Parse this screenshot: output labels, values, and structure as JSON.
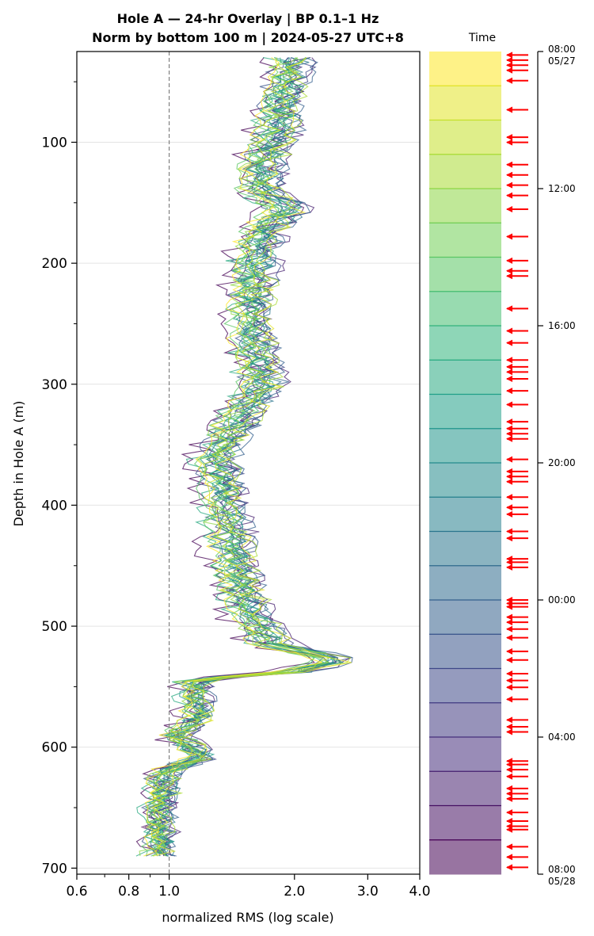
{
  "chart_data": {
    "type": "line",
    "title": [
      "Hole A — 24-hr Overlay  |  BP 0.1–1 Hz",
      "Norm by bottom 100 m  |  2024-05-27 UTC+8"
    ],
    "xlabel": "normalized RMS  (log scale)",
    "ylabel": "Depth in Hole A (m)",
    "xscale": "log",
    "xlim": [
      0.6,
      4.0
    ],
    "ylim": [
      705,
      25
    ],
    "xticks": [
      0.6,
      0.8,
      1.0,
      2.0,
      3.0,
      4.0
    ],
    "xtick_labels": [
      "0.6",
      "0.8",
      "1.0",
      "2.0",
      "3.0",
      "4.0"
    ],
    "yticks": [
      100,
      200,
      300,
      400,
      500,
      600,
      700
    ],
    "ytick_labels": [
      "100",
      "200",
      "300",
      "400",
      "500",
      "600",
      "700"
    ],
    "reference_line": {
      "x": 1.0,
      "style": "dashed"
    },
    "grid": "horizontal",
    "n_curves": 24,
    "depth_min": 30,
    "depth_max": 692,
    "depth_step": 4,
    "profile_points": [
      {
        "depth": 30,
        "rms": 1.9
      },
      {
        "depth": 60,
        "rms": 1.8
      },
      {
        "depth": 90,
        "rms": 1.75
      },
      {
        "depth": 120,
        "rms": 1.6
      },
      {
        "depth": 140,
        "rms": 1.58
      },
      {
        "depth": 155,
        "rms": 1.85
      },
      {
        "depth": 175,
        "rms": 1.6
      },
      {
        "depth": 200,
        "rms": 1.55
      },
      {
        "depth": 250,
        "rms": 1.5
      },
      {
        "depth": 300,
        "rms": 1.6
      },
      {
        "depth": 330,
        "rms": 1.4
      },
      {
        "depth": 360,
        "rms": 1.25
      },
      {
        "depth": 400,
        "rms": 1.3
      },
      {
        "depth": 450,
        "rms": 1.38
      },
      {
        "depth": 490,
        "rms": 1.5
      },
      {
        "depth": 515,
        "rms": 1.7
      },
      {
        "depth": 528,
        "rms": 2.45
      },
      {
        "depth": 538,
        "rms": 1.9
      },
      {
        "depth": 544,
        "rms": 1.12
      },
      {
        "depth": 575,
        "rms": 1.15
      },
      {
        "depth": 590,
        "rms": 1.02
      },
      {
        "depth": 608,
        "rms": 1.18
      },
      {
        "depth": 620,
        "rms": 0.95
      },
      {
        "depth": 650,
        "rms": 0.93
      },
      {
        "depth": 692,
        "rms": 0.92
      }
    ],
    "colorbar": {
      "label": "Time",
      "colormap": "viridis",
      "tick_labels": [
        "08:00\n05/27",
        "12:00",
        "16:00",
        "20:00",
        "00:00",
        "04:00",
        "08:00\n05/28"
      ],
      "tick_hours": [
        0,
        4,
        8,
        12,
        16,
        20,
        24
      ],
      "n_bands": 24,
      "marker_color": "#ff0000",
      "marker_hours": [
        0.1,
        0.25,
        0.4,
        0.55,
        0.85,
        1.7,
        2.5,
        2.65,
        3.3,
        3.6,
        3.9,
        4.2,
        4.6,
        5.4,
        6.1,
        6.4,
        6.55,
        7.5,
        8.15,
        8.5,
        9.0,
        9.2,
        9.35,
        9.55,
        9.9,
        10.3,
        10.8,
        11.0,
        11.15,
        11.3,
        11.9,
        12.25,
        12.4,
        12.55,
        13.0,
        13.3,
        13.5,
        14.0,
        14.2,
        14.8,
        14.9,
        15.05,
        16.0,
        16.1,
        16.2,
        16.5,
        16.65,
        16.85,
        17.1,
        17.5,
        17.75,
        18.15,
        18.35,
        18.55,
        18.9,
        19.5,
        19.7,
        19.85,
        20.7,
        20.8,
        20.95,
        21.15,
        21.5,
        21.65,
        21.8,
        22.2,
        22.45,
        22.6,
        22.7,
        23.2,
        23.5,
        23.8
      ]
    }
  }
}
